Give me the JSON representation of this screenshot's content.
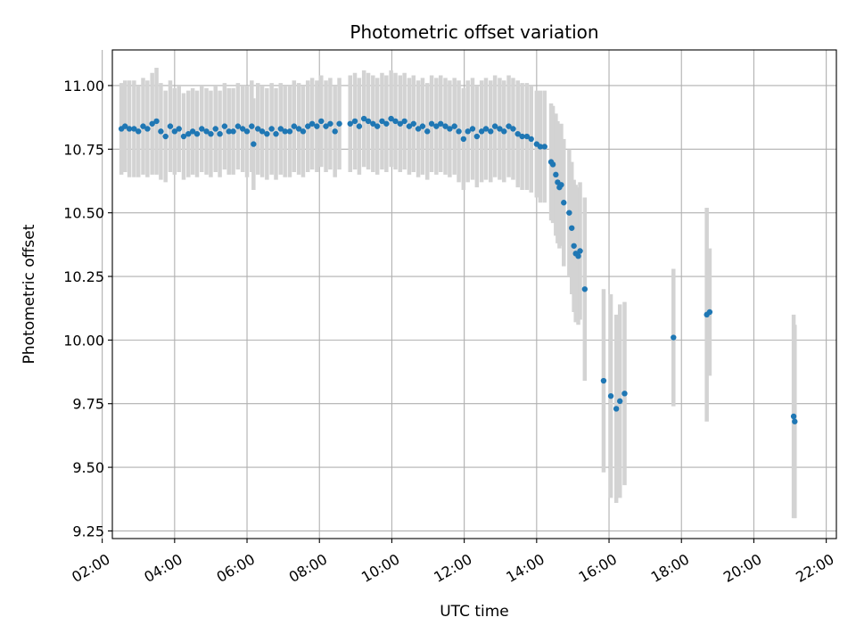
{
  "chart_data": {
    "type": "scatter",
    "title": "Photometric offset variation",
    "xlabel": "UTC time",
    "ylabel": "Photometric offset",
    "x_unit": "hours (UTC)",
    "xlim": [
      2.28,
      22.28
    ],
    "ylim": [
      9.22,
      11.14
    ],
    "x_ticks": [
      2,
      4,
      6,
      8,
      10,
      12,
      14,
      16,
      18,
      20,
      22
    ],
    "x_tick_labels": [
      "02:00",
      "04:00",
      "06:00",
      "08:00",
      "10:00",
      "12:00",
      "14:00",
      "16:00",
      "18:00",
      "20:00",
      "22:00"
    ],
    "y_ticks": [
      9.25,
      9.5,
      9.75,
      10.0,
      10.25,
      10.5,
      10.75,
      11.0
    ],
    "y_tick_labels": [
      "9.25",
      "9.50",
      "9.75",
      "10.00",
      "10.25",
      "10.50",
      "10.75",
      "11.00"
    ],
    "grid": true,
    "marker_color": "#1f77b4",
    "errorbar_color": "#d3d3d3",
    "series": [
      {
        "points": [
          [
            2.53,
            10.83,
            0.18
          ],
          [
            2.63,
            10.84,
            0.18
          ],
          [
            2.75,
            10.83,
            0.19
          ],
          [
            2.88,
            10.83,
            0.19
          ],
          [
            3.0,
            10.82,
            0.18
          ],
          [
            3.13,
            10.84,
            0.19
          ],
          [
            3.25,
            10.83,
            0.19
          ],
          [
            3.38,
            10.85,
            0.2
          ],
          [
            3.5,
            10.86,
            0.21
          ],
          [
            3.62,
            10.82,
            0.19
          ],
          [
            3.75,
            10.8,
            0.18
          ],
          [
            3.88,
            10.84,
            0.18
          ],
          [
            4.0,
            10.82,
            0.17
          ],
          [
            4.12,
            10.83,
            0.17
          ],
          [
            4.25,
            10.8,
            0.17
          ],
          [
            4.38,
            10.81,
            0.17
          ],
          [
            4.5,
            10.82,
            0.17
          ],
          [
            4.62,
            10.81,
            0.17
          ],
          [
            4.75,
            10.83,
            0.17
          ],
          [
            4.88,
            10.82,
            0.17
          ],
          [
            5.0,
            10.81,
            0.17
          ],
          [
            5.13,
            10.83,
            0.17
          ],
          [
            5.25,
            10.81,
            0.17
          ],
          [
            5.38,
            10.84,
            0.17
          ],
          [
            5.5,
            10.82,
            0.17
          ],
          [
            5.62,
            10.82,
            0.17
          ],
          [
            5.75,
            10.84,
            0.17
          ],
          [
            5.88,
            10.83,
            0.17
          ],
          [
            6.0,
            10.82,
            0.18
          ],
          [
            6.13,
            10.84,
            0.18
          ],
          [
            6.18,
            10.77,
            0.18
          ],
          [
            6.3,
            10.83,
            0.18
          ],
          [
            6.42,
            10.82,
            0.18
          ],
          [
            6.55,
            10.81,
            0.18
          ],
          [
            6.68,
            10.83,
            0.18
          ],
          [
            6.8,
            10.81,
            0.18
          ],
          [
            6.93,
            10.83,
            0.18
          ],
          [
            7.05,
            10.82,
            0.18
          ],
          [
            7.18,
            10.82,
            0.18
          ],
          [
            7.3,
            10.84,
            0.18
          ],
          [
            7.43,
            10.83,
            0.18
          ],
          [
            7.55,
            10.82,
            0.18
          ],
          [
            7.68,
            10.84,
            0.18
          ],
          [
            7.8,
            10.85,
            0.18
          ],
          [
            7.93,
            10.84,
            0.18
          ],
          [
            8.05,
            10.86,
            0.18
          ],
          [
            8.18,
            10.84,
            0.18
          ],
          [
            8.3,
            10.85,
            0.18
          ],
          [
            8.43,
            10.82,
            0.18
          ],
          [
            8.55,
            10.85,
            0.18
          ],
          [
            8.85,
            10.85,
            0.19
          ],
          [
            8.98,
            10.86,
            0.19
          ],
          [
            9.1,
            10.84,
            0.19
          ],
          [
            9.23,
            10.87,
            0.19
          ],
          [
            9.35,
            10.86,
            0.19
          ],
          [
            9.48,
            10.85,
            0.19
          ],
          [
            9.6,
            10.84,
            0.19
          ],
          [
            9.73,
            10.86,
            0.19
          ],
          [
            9.85,
            10.85,
            0.19
          ],
          [
            9.98,
            10.87,
            0.19
          ],
          [
            10.1,
            10.86,
            0.19
          ],
          [
            10.23,
            10.85,
            0.19
          ],
          [
            10.35,
            10.86,
            0.19
          ],
          [
            10.48,
            10.84,
            0.19
          ],
          [
            10.6,
            10.85,
            0.19
          ],
          [
            10.73,
            10.83,
            0.19
          ],
          [
            10.85,
            10.84,
            0.19
          ],
          [
            10.98,
            10.82,
            0.19
          ],
          [
            11.1,
            10.85,
            0.19
          ],
          [
            11.23,
            10.84,
            0.19
          ],
          [
            11.35,
            10.85,
            0.19
          ],
          [
            11.48,
            10.84,
            0.19
          ],
          [
            11.6,
            10.83,
            0.19
          ],
          [
            11.73,
            10.84,
            0.19
          ],
          [
            11.85,
            10.82,
            0.2
          ],
          [
            11.98,
            10.79,
            0.2
          ],
          [
            12.1,
            10.82,
            0.2
          ],
          [
            12.23,
            10.83,
            0.2
          ],
          [
            12.35,
            10.8,
            0.2
          ],
          [
            12.48,
            10.82,
            0.2
          ],
          [
            12.6,
            10.83,
            0.2
          ],
          [
            12.73,
            10.82,
            0.2
          ],
          [
            12.85,
            10.84,
            0.2
          ],
          [
            12.98,
            10.83,
            0.2
          ],
          [
            13.1,
            10.82,
            0.2
          ],
          [
            13.23,
            10.84,
            0.2
          ],
          [
            13.35,
            10.83,
            0.2
          ],
          [
            13.48,
            10.81,
            0.21
          ],
          [
            13.6,
            10.8,
            0.21
          ],
          [
            13.73,
            10.8,
            0.21
          ],
          [
            13.85,
            10.79,
            0.21
          ],
          [
            14.0,
            10.77,
            0.21
          ],
          [
            14.1,
            10.76,
            0.22
          ],
          [
            14.22,
            10.76,
            0.22
          ],
          [
            14.4,
            10.7,
            0.23
          ],
          [
            14.45,
            10.69,
            0.23
          ],
          [
            14.53,
            10.65,
            0.24
          ],
          [
            14.58,
            10.62,
            0.24
          ],
          [
            14.63,
            10.6,
            0.24
          ],
          [
            14.68,
            10.61,
            0.24
          ],
          [
            14.75,
            10.54,
            0.25
          ],
          [
            14.9,
            10.5,
            0.25
          ],
          [
            14.97,
            10.44,
            0.26
          ],
          [
            15.03,
            10.37,
            0.26
          ],
          [
            15.08,
            10.34,
            0.27
          ],
          [
            15.15,
            10.33,
            0.27
          ],
          [
            15.2,
            10.35,
            0.27
          ],
          [
            15.33,
            10.2,
            0.36
          ],
          [
            15.85,
            9.84,
            0.36
          ],
          [
            16.05,
            9.78,
            0.4
          ],
          [
            16.2,
            9.73,
            0.37
          ],
          [
            16.3,
            9.76,
            0.38
          ],
          [
            16.43,
            9.79,
            0.36
          ],
          [
            17.78,
            10.01,
            0.27
          ],
          [
            18.7,
            10.1,
            0.42
          ],
          [
            18.78,
            10.11,
            0.25
          ],
          [
            21.1,
            9.7,
            0.4
          ],
          [
            21.13,
            9.68,
            0.38
          ]
        ]
      }
    ]
  }
}
